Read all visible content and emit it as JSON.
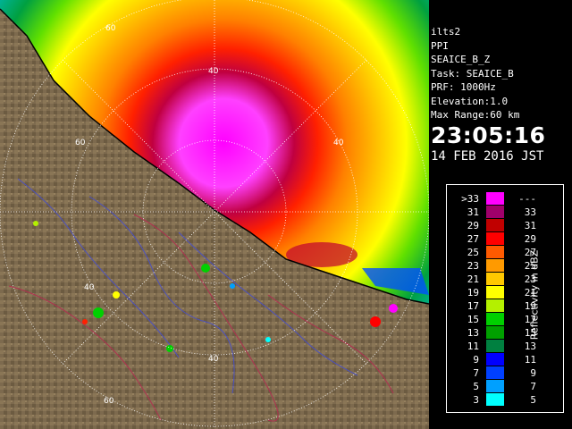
{
  "header": {
    "station": "ilts2",
    "scan_mode": "PPI",
    "product": "SEAICE_B_Z",
    "task": "Task: SEAICE_B",
    "prf": "PRF: 1000Hz",
    "elevation": "Elevation:1.0",
    "max_range": "Max Range:60 km",
    "time": "23:05:16",
    "date": "14 FEB 2016 JST"
  },
  "range_labels": [
    "60",
    "40",
    "40",
    "60",
    "40",
    "40",
    "60"
  ],
  "legend": {
    "units": "Reflectivity in dBZ",
    "rows": [
      {
        "lo": ">33",
        "hi": "---",
        "color": "#ff00ff"
      },
      {
        "lo": "31",
        "hi": "33",
        "color": "#a0006a"
      },
      {
        "lo": "29",
        "hi": "31",
        "color": "#c00000"
      },
      {
        "lo": "27",
        "hi": "29",
        "color": "#ff0000"
      },
      {
        "lo": "25",
        "hi": "27",
        "color": "#ff5a00"
      },
      {
        "lo": "23",
        "hi": "25",
        "color": "#ff9a00"
      },
      {
        "lo": "21",
        "hi": "23",
        "color": "#ffc800"
      },
      {
        "lo": "19",
        "hi": "21",
        "color": "#ffff00"
      },
      {
        "lo": "17",
        "hi": "19",
        "color": "#b4f000"
      },
      {
        "lo": "15",
        "hi": "17",
        "color": "#00d000"
      },
      {
        "lo": "13",
        "hi": "15",
        "color": "#00a000"
      },
      {
        "lo": "11",
        "hi": "13",
        "color": "#008040"
      },
      {
        "lo": "9",
        "hi": "11",
        "color": "#0000ff"
      },
      {
        "lo": "7",
        "hi": "9",
        "color": "#0040ff"
      },
      {
        "lo": "5",
        "hi": "7",
        "color": "#00a0ff"
      },
      {
        "lo": "3",
        "hi": "5",
        "color": "#00ffff"
      }
    ]
  },
  "colors": {
    "land": "#7d6a4e",
    "coastline": "#000000",
    "range_ring": "#ffffff",
    "rivers": "#4a50c0",
    "boundaries": "#b03050"
  }
}
